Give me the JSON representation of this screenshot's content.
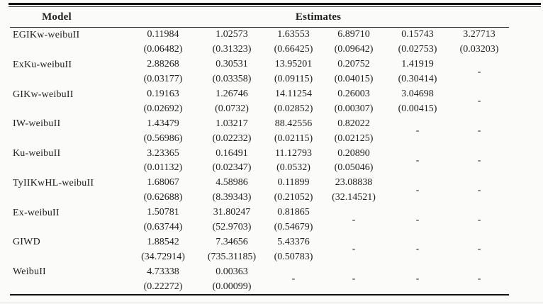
{
  "page": {
    "background_color": "#fbfbf9",
    "text_color": "#1f1f1f",
    "rule_color": "#111111"
  },
  "table": {
    "header": {
      "model": "Model",
      "estimates": "Estimates"
    },
    "missing_placeholder": "-",
    "rows": [
      {
        "model": "EGIKw-weibuII",
        "values": [
          "0.11984",
          "1.02573",
          "1.63553",
          "6.89710",
          "0.15743",
          "3.27713"
        ],
        "errors": [
          "(0.06482)",
          "(0.31323)",
          "(0.66425)",
          "(0.09642)",
          "(0.02753)",
          "(0.03203)"
        ]
      },
      {
        "model": "ExKu-weibuII",
        "values": [
          "2.88268",
          "0.30531",
          "13.95201",
          "0.20752",
          "1.41919",
          null
        ],
        "errors": [
          "(0.03177)",
          "(0.03358)",
          "(0.09115)",
          "(0.04015)",
          "(0.30414)",
          null
        ]
      },
      {
        "model": "GIKw-weibuII",
        "values": [
          "0.19163",
          "1.26746",
          "14.11254",
          "0.26003",
          "3.04698",
          null
        ],
        "errors": [
          "(0.02692)",
          "(0.0732)",
          "(0.02852)",
          "(0.00307)",
          "(0.00415)",
          null
        ]
      },
      {
        "model": "IW-weibuII",
        "values": [
          "1.43479",
          "1.03217",
          "88.42556",
          "0.82022",
          null,
          null
        ],
        "errors": [
          "(0.56986)",
          "(0.02232)",
          "(0.02115)",
          "(0.02125)",
          null,
          null
        ]
      },
      {
        "model": "Ku-weibuII",
        "values": [
          "3.23365",
          "0.16491",
          "11.12793",
          "0.20890",
          null,
          null
        ],
        "errors": [
          "(0.01132)",
          "(0.02347)",
          "(0.0532)",
          "(0.05046)",
          null,
          null
        ]
      },
      {
        "model": "TyIIKwHL-weibuII",
        "values": [
          "1.68067",
          "4.58986",
          "0.11899",
          "23.08838",
          null,
          null
        ],
        "errors": [
          "(0.62688)",
          "(8.39343)",
          "(0.21052)",
          "(32.14521)",
          null,
          null
        ]
      },
      {
        "model": "Ex-weibuII",
        "values": [
          "1.50781",
          "31.80247",
          "0.81865",
          null,
          null,
          null
        ],
        "errors": [
          "(0.63744)",
          "(52.9703)",
          "(0.54679)",
          null,
          null,
          null
        ]
      },
      {
        "model": "GIWD",
        "values": [
          "1.88542",
          "7.34656",
          "5.43376",
          null,
          null,
          null
        ],
        "errors": [
          "(34.72914)",
          "(735.31185)",
          "(0.50783)",
          null,
          null,
          null
        ]
      },
      {
        "model": "WeibuII",
        "values": [
          "4.73338",
          "0.00363",
          null,
          null,
          null,
          null
        ],
        "errors": [
          "(0.22272)",
          "(0.00099)",
          null,
          null,
          null,
          null
        ]
      }
    ]
  }
}
